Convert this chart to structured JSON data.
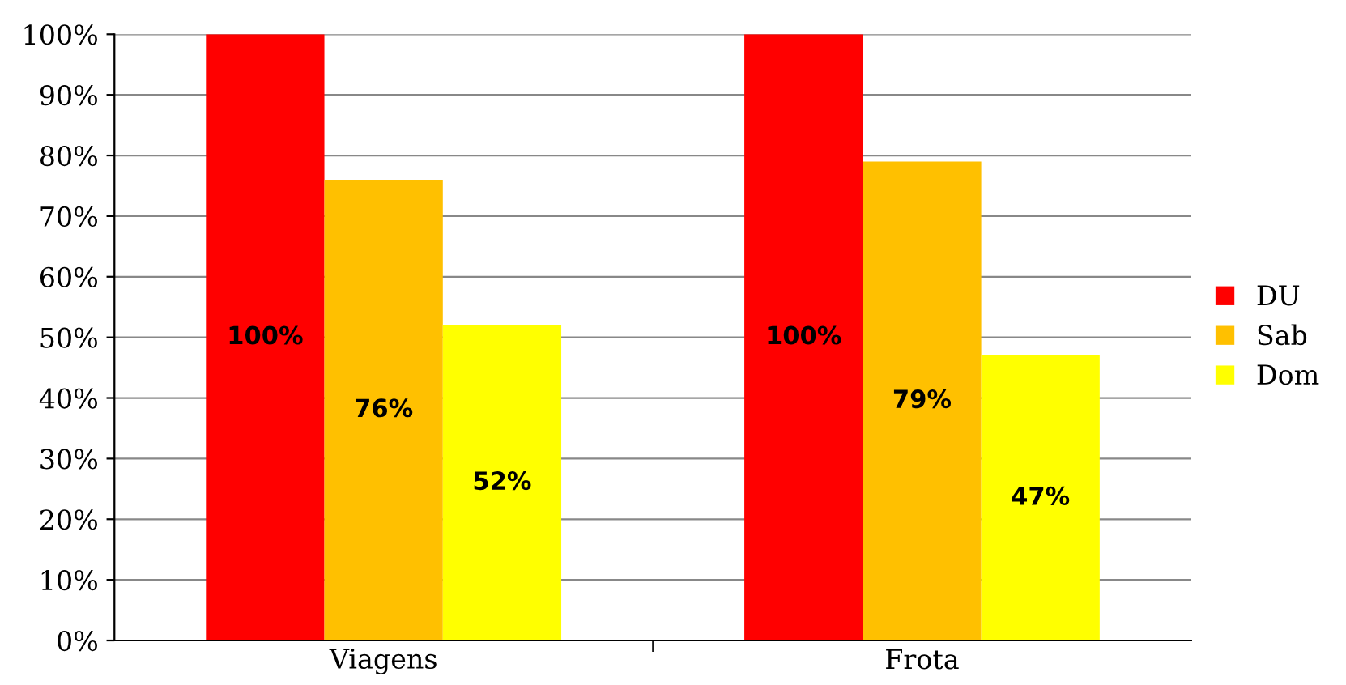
{
  "chart_data": {
    "type": "bar",
    "categories": [
      "Viagens",
      "Frota"
    ],
    "series": [
      {
        "name": "DU",
        "color": "#ff0000",
        "values": [
          100,
          100
        ],
        "value_labels": [
          "100%",
          "100%"
        ]
      },
      {
        "name": "Sab",
        "color": "#ffc000",
        "values": [
          76,
          79
        ],
        "value_labels": [
          "76%",
          "79%"
        ]
      },
      {
        "name": "Dom",
        "color": "#ffff00",
        "values": [
          52,
          47
        ],
        "value_labels": [
          "52%",
          "47%"
        ]
      }
    ],
    "ylim": [
      0,
      100
    ],
    "yticks": [
      {
        "value": 0,
        "label": "0%"
      },
      {
        "value": 10,
        "label": "10%"
      },
      {
        "value": 20,
        "label": "20%"
      },
      {
        "value": 30,
        "label": "30%"
      },
      {
        "value": 40,
        "label": "40%"
      },
      {
        "value": 50,
        "label": "50%"
      },
      {
        "value": 60,
        "label": "60%"
      },
      {
        "value": 70,
        "label": "70%"
      },
      {
        "value": 80,
        "label": "80%"
      },
      {
        "value": 90,
        "label": "90%"
      },
      {
        "value": 100,
        "label": "100%"
      }
    ],
    "grid": "y",
    "legend": "right"
  }
}
